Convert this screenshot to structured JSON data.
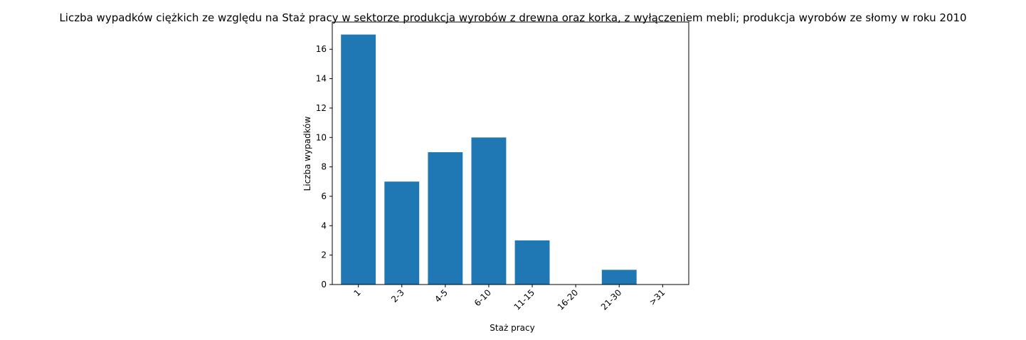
{
  "chart_data": {
    "type": "bar",
    "title": "Liczba wypadków ciężkich ze względu na Staż pracy w sektorze produkcja wyrobów z drewna oraz korka, z wyłączeniem mebli; produkcja wyrobów ze słomy w roku 2010",
    "xlabel": "Staż pracy",
    "ylabel": "Liczba wypadków",
    "categories": [
      "1",
      "2-3",
      "4-5",
      "6-10",
      "11-15",
      "16-20",
      "21-30",
      ">31"
    ],
    "values": [
      17,
      7,
      9,
      10,
      3,
      0,
      1,
      0
    ],
    "ylim": [
      0,
      17.85
    ],
    "yticks": [
      0,
      2,
      4,
      6,
      8,
      10,
      12,
      14,
      16
    ],
    "grid": false,
    "bar_color": "#1f77b4",
    "xtick_rotation": 45
  }
}
